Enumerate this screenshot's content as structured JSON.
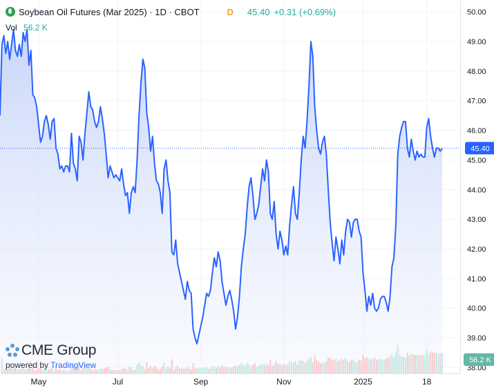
{
  "header": {
    "title": "Soybean Oil Futures (Mar 2025) · 1D · CBOT",
    "delay": "D",
    "last": "45.40",
    "change": "+0.31 (+0.69%)"
  },
  "volume": {
    "label": "Vol",
    "value": "56.2 K"
  },
  "watermark": {
    "brand": "CME Group",
    "powered_by": "powered by",
    "provider": "TradingView"
  },
  "colors": {
    "line": "#2962ff",
    "area": "#dde6fc",
    "up": "#22ab94",
    "down": "#f23645",
    "vol_up": "#c4e8e2",
    "vol_down": "#f7c9cd"
  },
  "chart_data": {
    "type": "area",
    "title": "Soybean Oil Futures (Mar 2025) · 1D · CBOT",
    "ylim": [
      37.8,
      50.4
    ],
    "y_ticks": [
      "50.00",
      "49.00",
      "48.00",
      "47.00",
      "46.00",
      "45.00",
      "44.00",
      "43.00",
      "42.00",
      "41.00",
      "40.00",
      "39.00",
      "38.00"
    ],
    "x_ticks": [
      {
        "label": "May",
        "index": 20
      },
      {
        "label": "Jul",
        "index": 61
      },
      {
        "label": "Sep",
        "index": 104
      },
      {
        "label": "Nov",
        "index": 147
      },
      {
        "label": "2025",
        "index": 188
      },
      {
        "label": "18",
        "index": 221
      }
    ],
    "last_price_label": "45.40",
    "volume_label": "56.2 K",
    "grid": true,
    "legend": "none",
    "series": [
      {
        "values": [
          46.5,
          48.9,
          49.2,
          48.6,
          49.0,
          48.4,
          48.9,
          49.4,
          48.7,
          48.5,
          48.9,
          48.5,
          49.3,
          49.0,
          49.4,
          48.2,
          48.7,
          47.2,
          47.1,
          46.8,
          46.2,
          45.6,
          45.8,
          46.3,
          46.5,
          46.2,
          45.7,
          46.3,
          46.4,
          45.4,
          45.2,
          44.7,
          44.8,
          44.6,
          44.8,
          44.8,
          44.6,
          45.9,
          44.9,
          44.7,
          44.3,
          45.8,
          45.6,
          45.0,
          45.9,
          46.6,
          47.3,
          46.8,
          46.7,
          46.3,
          46.1,
          46.3,
          46.8,
          46.4,
          45.9,
          45.2,
          44.4,
          44.8,
          44.6,
          44.4,
          44.5,
          44.4,
          44.3,
          44.7,
          44.2,
          43.8,
          43.9,
          43.2,
          43.9,
          44.1,
          43.9,
          45.0,
          46.5,
          47.6,
          48.4,
          48.1,
          46.6,
          46.1,
          45.3,
          45.8,
          44.9,
          44.3,
          44.2,
          43.9,
          43.2,
          44.7,
          45.0,
          44.3,
          43.9,
          41.9,
          41.8,
          42.3,
          41.5,
          41.2,
          40.9,
          40.6,
          40.3,
          40.9,
          40.6,
          40.5,
          39.3,
          39.0,
          38.8,
          39.1,
          39.4,
          39.7,
          40.1,
          40.5,
          40.4,
          40.6,
          41.2,
          41.7,
          41.4,
          41.9,
          41.6,
          40.9,
          40.5,
          40.1,
          40.4,
          40.6,
          40.3,
          39.9,
          39.3,
          39.7,
          40.4,
          41.4,
          42.0,
          42.5,
          43.4,
          44.1,
          44.4,
          43.8,
          43.0,
          43.2,
          43.5,
          44.1,
          44.7,
          44.3,
          45.0,
          44.6,
          43.2,
          43.0,
          43.6,
          42.5,
          42.0,
          42.6,
          42.3,
          41.8,
          42.1,
          41.8,
          42.8,
          43.5,
          44.1,
          43.2,
          43.0,
          43.9,
          45.0,
          45.8,
          45.4,
          46.3,
          47.5,
          49.0,
          48.5,
          46.8,
          46.0,
          45.4,
          45.2,
          45.6,
          45.8,
          45.2,
          44.0,
          42.9,
          42.2,
          41.6,
          42.4,
          42.0,
          41.5,
          42.3,
          41.8,
          42.6,
          43.0,
          42.9,
          42.4,
          42.9,
          43.0,
          43.0,
          42.6,
          42.4,
          41.2,
          40.6,
          39.9,
          40.4,
          40.1,
          40.5,
          40.0,
          39.9,
          40.0,
          40.3,
          40.4,
          40.4,
          40.2,
          39.9,
          40.4,
          41.4,
          41.7,
          42.8,
          45.2,
          45.8,
          46.1,
          46.3,
          46.3,
          45.4,
          45.1,
          45.7,
          45.3,
          45.0,
          45.3,
          45.1,
          45.2,
          45.1,
          45.1,
          46.1,
          46.4,
          45.8,
          45.4,
          45.1,
          45.4,
          45.4,
          45.3,
          45.4
        ]
      }
    ]
  }
}
